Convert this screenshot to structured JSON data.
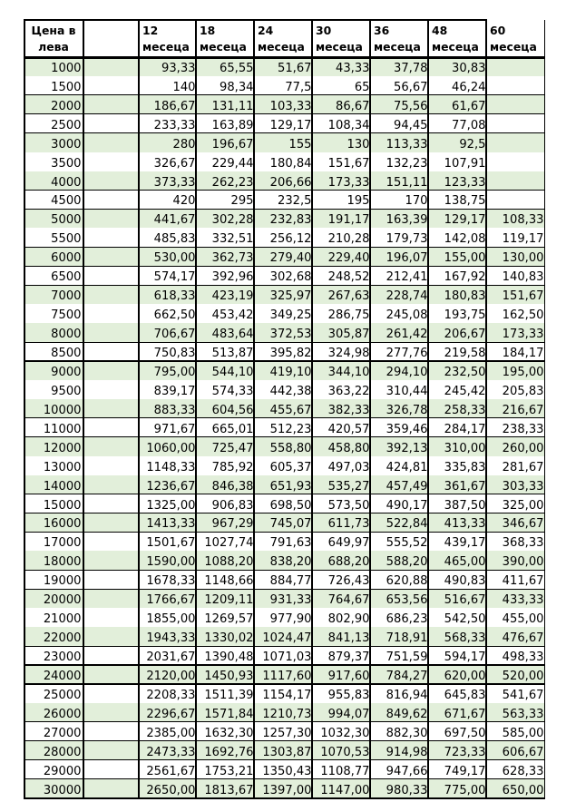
{
  "page": {
    "background": "#ffffff"
  },
  "table": {
    "header": {
      "price_line1": "Цена в",
      "price_line2": "лева",
      "empty_label": "",
      "months": [
        {
          "number": "12",
          "word": "месеца"
        },
        {
          "number": "18",
          "word": "месеца"
        },
        {
          "number": "24",
          "word": "месеца"
        },
        {
          "number": "30",
          "word": "месеца"
        },
        {
          "number": "36",
          "word": "месеца"
        },
        {
          "number": "48",
          "word": "месеца"
        },
        {
          "number": "60",
          "word": "месеца"
        }
      ]
    },
    "rows": [
      {
        "price": "1000",
        "values": [
          "93,33",
          "65,55",
          "51,67",
          "43,33",
          "37,78",
          "30,83",
          ""
        ]
      },
      {
        "price": "1500",
        "values": [
          "140",
          "98,34",
          "77,5",
          "65",
          "56,67",
          "46,24",
          ""
        ]
      },
      {
        "price": "2000",
        "values": [
          "186,67",
          "131,11",
          "103,33",
          "86,67",
          "75,56",
          "61,67",
          ""
        ]
      },
      {
        "price": "2500",
        "values": [
          "233,33",
          "163,89",
          "129,17",
          "108,34",
          "94,45",
          "77,08",
          ""
        ]
      },
      {
        "price": "3000",
        "values": [
          "280",
          "196,67",
          "155",
          "130",
          "113,33",
          "92,5",
          ""
        ]
      },
      {
        "price": "3500",
        "values": [
          "326,67",
          "229,44",
          "180,84",
          "151,67",
          "132,23",
          "107,91",
          ""
        ]
      },
      {
        "price": "4000",
        "values": [
          "373,33",
          "262,23",
          "206,66",
          "173,33",
          "151,11",
          "123,33",
          ""
        ]
      },
      {
        "price": "4500",
        "values": [
          "420",
          "295",
          "232,5",
          "195",
          "170",
          "138,75",
          ""
        ]
      },
      {
        "price": "5000",
        "values": [
          "441,67",
          "302,28",
          "232,83",
          "191,17",
          "163,39",
          "129,17",
          "108,33"
        ]
      },
      {
        "price": "5500",
        "values": [
          "485,83",
          "332,51",
          "256,12",
          "210,28",
          "179,73",
          "142,08",
          "119,17"
        ]
      },
      {
        "price": "6000",
        "values": [
          "530,00",
          "362,73",
          "279,40",
          "229,40",
          "196,07",
          "155,00",
          "130,00"
        ]
      },
      {
        "price": "6500",
        "values": [
          "574,17",
          "392,96",
          "302,68",
          "248,52",
          "212,41",
          "167,92",
          "140,83"
        ]
      },
      {
        "price": "7000",
        "values": [
          "618,33",
          "423,19",
          "325,97",
          "267,63",
          "228,74",
          "180,83",
          "151,67"
        ]
      },
      {
        "price": "7500",
        "values": [
          "662,50",
          "453,42",
          "349,25",
          "286,75",
          "245,08",
          "193,75",
          "162,50"
        ]
      },
      {
        "price": "8000",
        "values": [
          "706,67",
          "483,64",
          "372,53",
          "305,87",
          "261,42",
          "206,67",
          "173,33"
        ]
      },
      {
        "price": "8500",
        "values": [
          "750,83",
          "513,87",
          "395,82",
          "324,98",
          "277,76",
          "219,58",
          "184,17"
        ]
      },
      {
        "price": "9000",
        "values": [
          "795,00",
          "544,10",
          "419,10",
          "344,10",
          "294,10",
          "232,50",
          "195,00"
        ]
      },
      {
        "price": "9500",
        "values": [
          "839,17",
          "574,33",
          "442,38",
          "363,22",
          "310,44",
          "245,42",
          "205,83"
        ]
      },
      {
        "price": "10000",
        "values": [
          "883,33",
          "604,56",
          "455,67",
          "382,33",
          "326,78",
          "258,33",
          "216,67"
        ]
      },
      {
        "price": "11000",
        "values": [
          "971,67",
          "665,01",
          "512,23",
          "420,57",
          "359,46",
          "284,17",
          "238,33"
        ]
      },
      {
        "price": "12000",
        "values": [
          "1060,00",
          "725,47",
          "558,80",
          "458,80",
          "392,13",
          "310,00",
          "260,00"
        ]
      },
      {
        "price": "13000",
        "values": [
          "1148,33",
          "785,92",
          "605,37",
          "497,03",
          "424,81",
          "335,83",
          "281,67"
        ]
      },
      {
        "price": "14000",
        "values": [
          "1236,67",
          "846,38",
          "651,93",
          "535,27",
          "457,49",
          "361,67",
          "303,33"
        ]
      },
      {
        "price": "15000",
        "values": [
          "1325,00",
          "906,83",
          "698,50",
          "573,50",
          "490,17",
          "387,50",
          "325,00"
        ]
      },
      {
        "price": "16000",
        "values": [
          "1413,33",
          "967,29",
          "745,07",
          "611,73",
          "522,84",
          "413,33",
          "346,67"
        ]
      },
      {
        "price": "17000",
        "values": [
          "1501,67",
          "1027,74",
          "791,63",
          "649,97",
          "555,52",
          "439,17",
          "368,33"
        ]
      },
      {
        "price": "18000",
        "values": [
          "1590,00",
          "1088,20",
          "838,20",
          "688,20",
          "588,20",
          "465,00",
          "390,00"
        ]
      },
      {
        "price": "19000",
        "values": [
          "1678,33",
          "1148,66",
          "884,77",
          "726,43",
          "620,88",
          "490,83",
          "411,67"
        ]
      },
      {
        "price": "20000",
        "values": [
          "1766,67",
          "1209,11",
          "931,33",
          "764,67",
          "653,56",
          "516,67",
          "433,33"
        ]
      },
      {
        "price": "21000",
        "values": [
          "1855,00",
          "1269,57",
          "977,90",
          "802,90",
          "686,23",
          "542,50",
          "455,00"
        ]
      },
      {
        "price": "22000",
        "values": [
          "1943,33",
          "1330,02",
          "1024,47",
          "841,13",
          "718,91",
          "568,33",
          "476,67"
        ]
      },
      {
        "price": "23000",
        "values": [
          "2031,67",
          "1390,48",
          "1071,03",
          "879,37",
          "751,59",
          "594,17",
          "498,33"
        ]
      },
      {
        "price": "24000",
        "values": [
          "2120,00",
          "1450,93",
          "1117,60",
          "917,60",
          "784,27",
          "620,00",
          "520,00"
        ]
      },
      {
        "price": "25000",
        "values": [
          "2208,33",
          "1511,39",
          "1154,17",
          "955,83",
          "816,94",
          "645,83",
          "541,67"
        ]
      },
      {
        "price": "26000",
        "values": [
          "2296,67",
          "1571,84",
          "1210,73",
          "994,07",
          "849,62",
          "671,67",
          "563,33"
        ]
      },
      {
        "price": "27000",
        "values": [
          "2385,00",
          "1632,30",
          "1257,30",
          "1032,30",
          "882,30",
          "697,50",
          "585,00"
        ]
      },
      {
        "price": "28000",
        "values": [
          "2473,33",
          "1692,76",
          "1303,87",
          "1070,53",
          "914,98",
          "723,33",
          "606,67"
        ]
      },
      {
        "price": "29000",
        "values": [
          "2561,67",
          "1753,21",
          "1350,43",
          "1108,77",
          "947,66",
          "749,17",
          "628,33"
        ]
      },
      {
        "price": "30000",
        "values": [
          "2650,00",
          "1813,67",
          "1397,00",
          "1147,00",
          "980,33",
          "775,00",
          "650,00"
        ]
      }
    ],
    "rows_with_border_below": [
      "1500",
      "2000",
      "2500",
      "4000",
      "4500",
      "5500",
      "6000",
      "6500",
      "8000",
      "8500",
      "10000",
      "11000",
      "14000",
      "15000",
      "16000",
      "18000",
      "19000",
      "22000",
      "23000",
      "24000",
      "26000",
      "27000",
      "28000",
      "29000"
    ],
    "colors": {
      "stripe_green": "#e2efda",
      "row_white": "#ffffff",
      "grid": "#000000",
      "text": "#000000"
    }
  }
}
